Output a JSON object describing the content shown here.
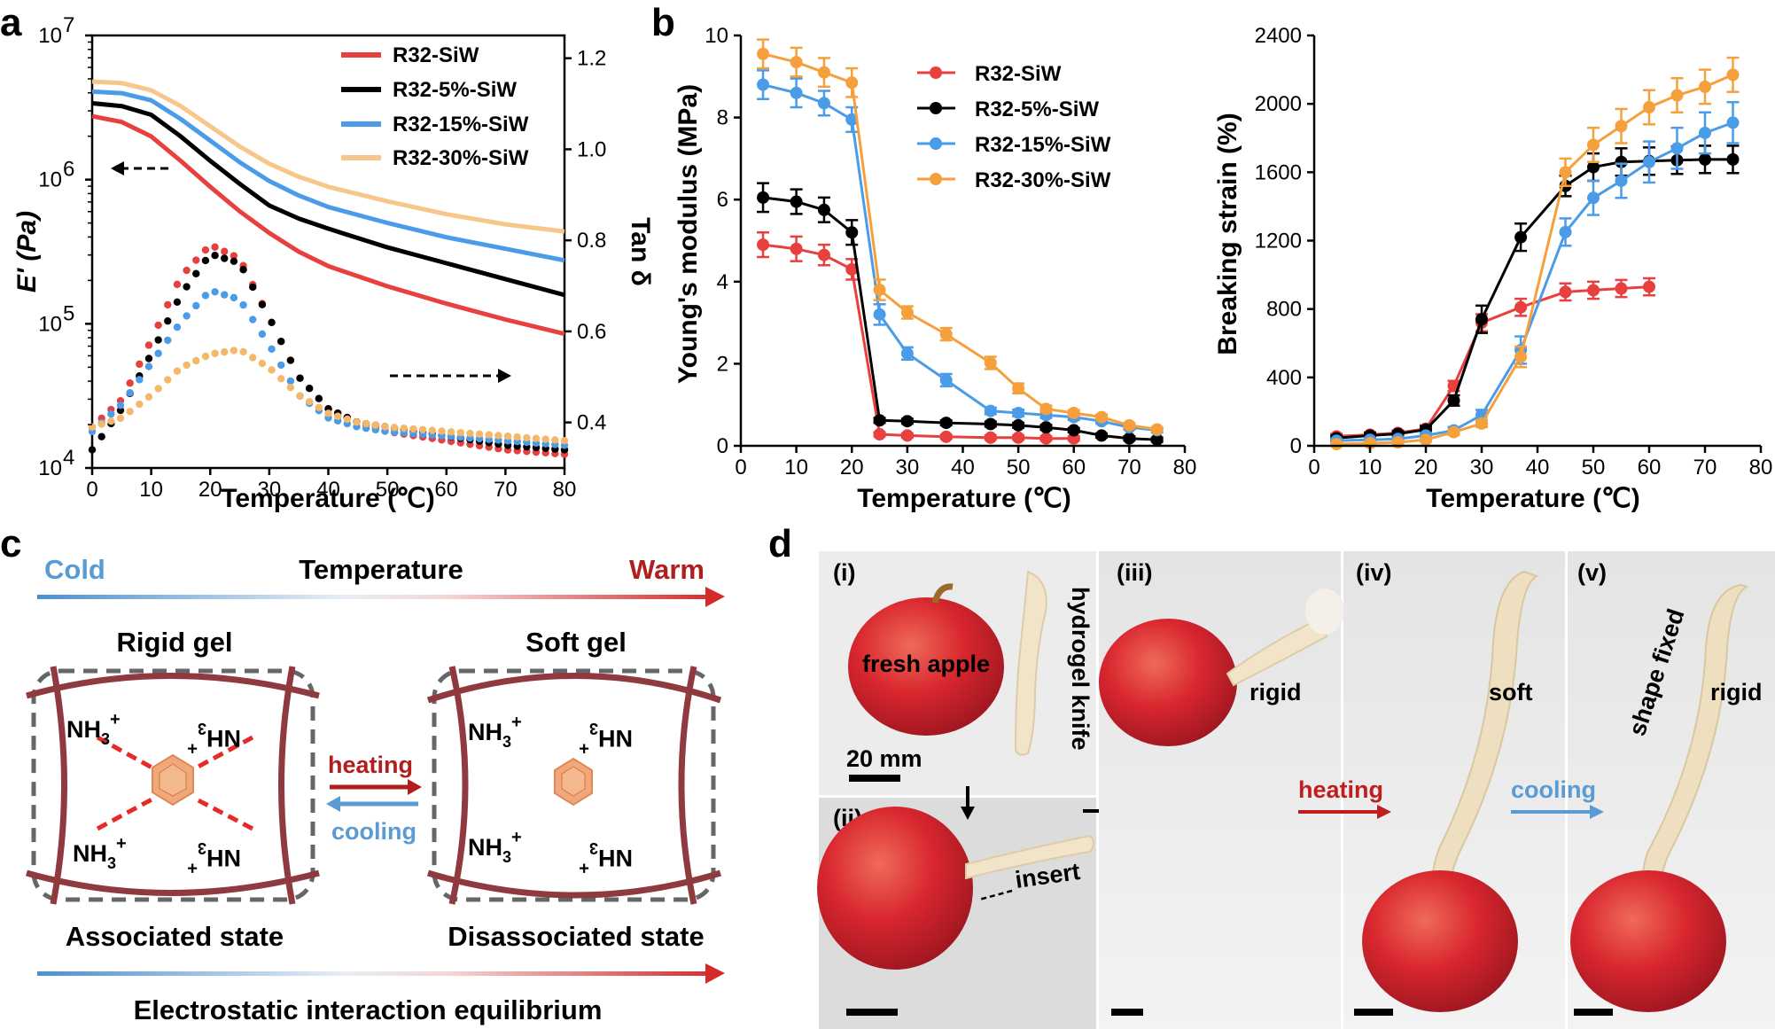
{
  "panel_labels": {
    "a": "a",
    "b": "b",
    "c": "c",
    "d": "d"
  },
  "chart_data": [
    {
      "id": "a",
      "type": "line",
      "xlabel": "Temperature (℃)",
      "ylabel": "E' (Pa)",
      "ylabel2": "Tan δ",
      "xlim": [
        0,
        80
      ],
      "xticks": [
        0,
        10,
        20,
        30,
        40,
        50,
        60,
        70,
        80
      ],
      "ylim_log": [
        4,
        7
      ],
      "ytick_labels": [
        "10",
        "10",
        "10",
        "10"
      ],
      "ytick_exps": [
        "4",
        "5",
        "6",
        "7"
      ],
      "ylim2": [
        0.3,
        1.25
      ],
      "yticks2": [
        0.4,
        0.6,
        0.8,
        1.0,
        1.2
      ],
      "yticks2_labels": [
        "0.4",
        "0.6",
        "0.8",
        "1.0",
        "1.2"
      ],
      "legend": [
        "R32-SiW",
        "R32-5%-SiW",
        "R32-15%-SiW",
        "R32-30%-SiW"
      ],
      "colors": [
        "#e8403f",
        "#000000",
        "#4a9be8",
        "#f7c68a"
      ],
      "dot_colors": [
        "#e8403f",
        "#000000",
        "#4a9be8",
        "#f5b768"
      ],
      "modulus_series": [
        {
          "x": [
            0,
            5,
            10,
            15,
            20,
            25,
            30,
            35,
            40,
            50,
            60,
            70,
            80
          ],
          "logy": [
            6.44,
            6.4,
            6.3,
            6.13,
            5.95,
            5.78,
            5.63,
            5.5,
            5.4,
            5.26,
            5.14,
            5.03,
            4.93
          ]
        },
        {
          "x": [
            0,
            5,
            10,
            15,
            20,
            25,
            30,
            35,
            40,
            50,
            60,
            70,
            80
          ],
          "logy": [
            6.53,
            6.51,
            6.45,
            6.3,
            6.13,
            5.97,
            5.82,
            5.73,
            5.66,
            5.53,
            5.42,
            5.31,
            5.2
          ]
        },
        {
          "x": [
            0,
            5,
            10,
            15,
            20,
            25,
            30,
            35,
            40,
            50,
            60,
            70,
            80
          ],
          "logy": [
            6.61,
            6.6,
            6.55,
            6.42,
            6.27,
            6.12,
            5.99,
            5.89,
            5.81,
            5.7,
            5.6,
            5.52,
            5.44
          ]
        },
        {
          "x": [
            0,
            5,
            10,
            15,
            20,
            25,
            30,
            35,
            40,
            50,
            60,
            70,
            80
          ],
          "logy": [
            6.68,
            6.67,
            6.62,
            6.51,
            6.37,
            6.23,
            6.11,
            6.02,
            5.95,
            5.85,
            5.76,
            5.69,
            5.64
          ]
        }
      ],
      "tan_series": [
        {
          "x": [
            0,
            5,
            10,
            15,
            20,
            25,
            30,
            35,
            40,
            45,
            50,
            60,
            70,
            80
          ],
          "y": [
            0.39,
            0.45,
            0.58,
            0.72,
            0.79,
            0.76,
            0.63,
            0.5,
            0.43,
            0.4,
            0.38,
            0.36,
            0.34,
            0.33
          ]
        },
        {
          "x": [
            0,
            5,
            10,
            15,
            20,
            25,
            30,
            35,
            40,
            45,
            50,
            60,
            70,
            80
          ],
          "y": [
            0.34,
            0.43,
            0.55,
            0.68,
            0.77,
            0.75,
            0.63,
            0.5,
            0.43,
            0.4,
            0.39,
            0.37,
            0.35,
            0.34
          ]
        },
        {
          "x": [
            0,
            5,
            10,
            15,
            20,
            25,
            30,
            35,
            40,
            45,
            50,
            60,
            70,
            80
          ],
          "y": [
            0.38,
            0.44,
            0.53,
            0.62,
            0.69,
            0.67,
            0.57,
            0.46,
            0.41,
            0.39,
            0.38,
            0.37,
            0.36,
            0.35
          ]
        },
        {
          "x": [
            0,
            5,
            10,
            15,
            20,
            25,
            30,
            35,
            40,
            45,
            50,
            60,
            70,
            80
          ],
          "y": [
            0.39,
            0.41,
            0.46,
            0.52,
            0.55,
            0.56,
            0.52,
            0.46,
            0.42,
            0.4,
            0.39,
            0.38,
            0.37,
            0.36
          ]
        }
      ],
      "arrows": {
        "left_arrow": "E'",
        "right_arrow": "Tan δ"
      }
    },
    {
      "id": "b1",
      "type": "line",
      "xlabel": "Temperature (℃)",
      "ylabel": "Young's modulus (MPa)",
      "xlim": [
        0,
        80
      ],
      "xticks": [
        0,
        10,
        20,
        30,
        40,
        50,
        60,
        70,
        80
      ],
      "ylim": [
        0,
        10
      ],
      "yticks": [
        0,
        2,
        4,
        6,
        8,
        10
      ],
      "legend": [
        "R32-SiW",
        "R32-5%-SiW",
        "R32-15%-SiW",
        "R32-30%-SiW"
      ],
      "colors": [
        "#e8403f",
        "#000000",
        "#4a9be8",
        "#f5a03c"
      ],
      "series": [
        {
          "name": "R32-SiW",
          "x": [
            4,
            10,
            15,
            20,
            25,
            30,
            37,
            45,
            50,
            55,
            60
          ],
          "y": [
            4.9,
            4.8,
            4.65,
            4.3,
            0.28,
            0.25,
            0.22,
            0.2,
            0.2,
            0.18,
            0.18
          ],
          "err": [
            0.3,
            0.3,
            0.25,
            0.25,
            0.05,
            0.05,
            0.05,
            0.05,
            0.05,
            0.05,
            0.05
          ]
        },
        {
          "name": "R32-5%-SiW",
          "x": [
            4,
            10,
            15,
            20,
            25,
            30,
            37,
            45,
            50,
            55,
            60,
            65,
            70,
            75
          ],
          "y": [
            6.05,
            5.95,
            5.75,
            5.2,
            0.62,
            0.6,
            0.56,
            0.53,
            0.5,
            0.45,
            0.38,
            0.25,
            0.18,
            0.15
          ],
          "err": [
            0.35,
            0.3,
            0.3,
            0.3,
            0.06,
            0.06,
            0.06,
            0.06,
            0.06,
            0.06,
            0.05,
            0.05,
            0.05,
            0.05
          ]
        },
        {
          "name": "R32-15%-SiW",
          "x": [
            4,
            10,
            15,
            20,
            25,
            30,
            37,
            45,
            50,
            55,
            60,
            65,
            70,
            75
          ],
          "y": [
            8.8,
            8.6,
            8.35,
            7.95,
            3.2,
            2.25,
            1.6,
            0.85,
            0.8,
            0.75,
            0.7,
            0.6,
            0.45,
            0.38
          ],
          "err": [
            0.35,
            0.35,
            0.3,
            0.3,
            0.25,
            0.15,
            0.15,
            0.08,
            0.08,
            0.07,
            0.07,
            0.06,
            0.05,
            0.05
          ]
        },
        {
          "name": "R32-30%-SiW",
          "x": [
            4,
            10,
            15,
            20,
            25,
            30,
            37,
            45,
            50,
            55,
            60,
            65,
            70,
            75
          ],
          "y": [
            9.55,
            9.35,
            9.1,
            8.85,
            3.8,
            3.25,
            2.72,
            2.02,
            1.4,
            0.9,
            0.8,
            0.7,
            0.5,
            0.4
          ],
          "err": [
            0.35,
            0.35,
            0.35,
            0.35,
            0.25,
            0.15,
            0.15,
            0.15,
            0.12,
            0.08,
            0.07,
            0.06,
            0.05,
            0.05
          ]
        }
      ]
    },
    {
      "id": "b2",
      "type": "line",
      "xlabel": "Temperature (℃)",
      "ylabel": "Breaking strain (%)",
      "xlim": [
        0,
        80
      ],
      "xticks": [
        0,
        10,
        20,
        30,
        40,
        50,
        60,
        70,
        80
      ],
      "ylim": [
        0,
        2400
      ],
      "yticks": [
        0,
        400,
        800,
        1200,
        1600,
        2000,
        2400
      ],
      "colors": [
        "#e8403f",
        "#000000",
        "#4a9be8",
        "#f5a03c"
      ],
      "series": [
        {
          "x": [
            4,
            10,
            15,
            20,
            25,
            30,
            37,
            45,
            50,
            55,
            60
          ],
          "y": [
            55,
            65,
            75,
            100,
            350,
            720,
            810,
            900,
            910,
            920,
            930
          ],
          "err": [
            15,
            15,
            15,
            20,
            30,
            50,
            50,
            50,
            50,
            50,
            50
          ]
        },
        {
          "x": [
            4,
            10,
            15,
            20,
            25,
            30,
            37,
            45,
            50,
            55,
            60,
            65,
            70,
            75
          ],
          "y": [
            45,
            60,
            70,
            95,
            265,
            740,
            1220,
            1520,
            1630,
            1660,
            1665,
            1670,
            1675,
            1675
          ],
          "err": [
            15,
            15,
            15,
            20,
            30,
            80,
            80,
            60,
            80,
            80,
            80,
            80,
            80,
            80
          ]
        },
        {
          "x": [
            4,
            10,
            15,
            20,
            25,
            30,
            37,
            45,
            50,
            55,
            60,
            65,
            70,
            75
          ],
          "y": [
            30,
            35,
            40,
            60,
            90,
            180,
            560,
            1250,
            1450,
            1550,
            1660,
            1740,
            1830,
            1890
          ],
          "err": [
            10,
            10,
            10,
            15,
            20,
            30,
            80,
            80,
            100,
            100,
            120,
            120,
            120,
            120
          ]
        },
        {
          "x": [
            4,
            10,
            15,
            20,
            25,
            30,
            37,
            45,
            50,
            55,
            60,
            65,
            70,
            75
          ],
          "y": [
            10,
            15,
            20,
            35,
            80,
            130,
            520,
            1600,
            1760,
            1870,
            1980,
            2050,
            2100,
            2170
          ],
          "err": [
            5,
            5,
            5,
            10,
            15,
            20,
            60,
            80,
            100,
            100,
            100,
            100,
            100,
            100
          ]
        }
      ]
    }
  ],
  "panel_c": {
    "cold": "Cold",
    "temperature": "Temperature",
    "warm": "Warm",
    "rigid_gel": "Rigid gel",
    "soft_gel": "Soft gel",
    "heating": "heating",
    "cooling": "cooling",
    "associated": "Associated state",
    "disassociated": "Disassociated state",
    "equilibrium": "Electrostatic interaction equilibrium",
    "nh3": "NH",
    "sub3": "3",
    "plus": "+"
  },
  "panel_d": {
    "i": "(i)",
    "ii": "(ii)",
    "iii": "(iii)",
    "iv": "(iv)",
    "v": "(v)",
    "fresh_apple": "fresh apple",
    "hydrogel_knife": "hydrogel knife",
    "scale": "20 mm",
    "insert": "insert",
    "rigid1": "rigid",
    "soft": "soft",
    "shape_fixed": "shape fixed",
    "rigid2": "rigid",
    "heating": "heating",
    "cooling": "cooling"
  }
}
